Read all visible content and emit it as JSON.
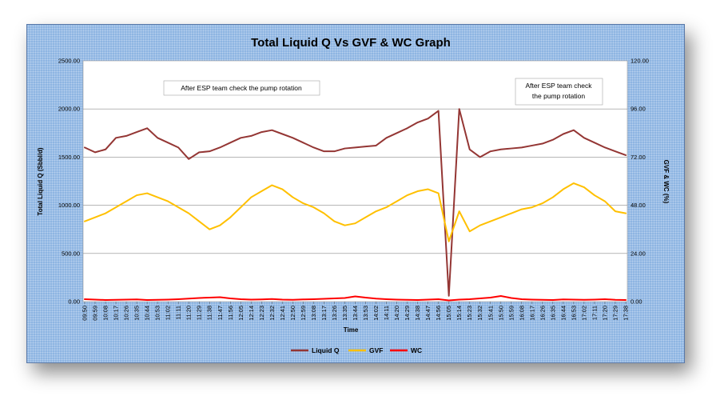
{
  "chart_data": {
    "type": "line",
    "title": "Total Liquid Q Vs GVF & WC Graph",
    "xlabel": "Time",
    "ylabel_left": "Total Liquid Q (Sbbl/d)",
    "ylabel_right": "GVF & WC (%)",
    "ylim_left": [
      0,
      2500
    ],
    "ylim_right": [
      0,
      120
    ],
    "yticks_left": [
      "0.00",
      "500.00",
      "1000.00",
      "1500.00",
      "2000.00",
      "2500.00"
    ],
    "yticks_right": [
      "0.00",
      "24.00",
      "48.00",
      "72.00",
      "96.00",
      "120.00"
    ],
    "xticks": [
      "09:50",
      "09:59",
      "10:08",
      "10:17",
      "10:26",
      "10:35",
      "10:44",
      "10:53",
      "11:02",
      "11:11",
      "11:20",
      "11:29",
      "11:38",
      "11:47",
      "11:56",
      "12:05",
      "12:14",
      "12:23",
      "12:32",
      "12:41",
      "12:50",
      "12:59",
      "13:08",
      "13:17",
      "13:26",
      "13:35",
      "13:44",
      "13:53",
      "14:02",
      "14:11",
      "14:20",
      "14:29",
      "14:38",
      "14:47",
      "14:56",
      "15:05",
      "15:14",
      "15:23",
      "15:32",
      "15:41",
      "15:50",
      "15:59",
      "16:08",
      "16:17",
      "16:26",
      "16:35",
      "16:44",
      "16:53",
      "17:02",
      "17:11",
      "17:20",
      "17:29",
      "17:38"
    ],
    "grid": "horizontal",
    "legend_position": "bottom",
    "annotations": [
      {
        "text": "After ESP team check the pump rotation"
      },
      {
        "text_lines": [
          "After ESP team check",
          "the pump rotation"
        ]
      }
    ],
    "series": [
      {
        "name": "Liquid Q",
        "axis": "left",
        "color": "#943634",
        "x": [
          "09:50",
          "09:59",
          "10:08",
          "10:17",
          "10:26",
          "10:35",
          "10:44",
          "10:53",
          "11:02",
          "11:11",
          "11:20",
          "11:29",
          "11:38",
          "11:47",
          "11:56",
          "12:05",
          "12:14",
          "12:23",
          "12:32",
          "12:41",
          "12:50",
          "12:59",
          "13:08",
          "13:17",
          "13:26",
          "13:35",
          "13:44",
          "13:53",
          "14:02",
          "14:11",
          "14:20",
          "14:29",
          "14:38",
          "14:47",
          "14:56",
          "15:05",
          "15:14",
          "15:23",
          "15:32",
          "15:41",
          "15:50",
          "15:59",
          "16:08",
          "16:17",
          "16:26",
          "16:35",
          "16:44",
          "16:53",
          "17:02",
          "17:11",
          "17:20",
          "17:29",
          "17:38"
        ],
        "values": [
          1600,
          1550,
          1580,
          1700,
          1720,
          1760,
          1800,
          1700,
          1650,
          1600,
          1480,
          1550,
          1560,
          1600,
          1650,
          1700,
          1720,
          1760,
          1780,
          1740,
          1700,
          1650,
          1600,
          1560,
          1560,
          1590,
          1600,
          1610,
          1620,
          1700,
          1750,
          1800,
          1860,
          1900,
          1980,
          60,
          2000,
          1580,
          1500,
          1560,
          1580,
          1590,
          1600,
          1620,
          1640,
          1680,
          1740,
          1780,
          1700,
          1650,
          1600,
          1560,
          1520
        ]
      },
      {
        "name": "GVF",
        "axis": "right",
        "color": "#ffc000",
        "x": [
          "09:50",
          "09:59",
          "10:08",
          "10:17",
          "10:26",
          "10:35",
          "10:44",
          "10:53",
          "11:02",
          "11:11",
          "11:20",
          "11:29",
          "11:38",
          "11:47",
          "11:56",
          "12:05",
          "12:14",
          "12:23",
          "12:32",
          "12:41",
          "12:50",
          "12:59",
          "13:08",
          "13:17",
          "13:26",
          "13:35",
          "13:44",
          "13:53",
          "14:02",
          "14:11",
          "14:20",
          "14:29",
          "14:38",
          "14:47",
          "14:56",
          "15:05",
          "15:14",
          "15:23",
          "15:32",
          "15:41",
          "15:50",
          "15:59",
          "16:08",
          "16:17",
          "16:26",
          "16:35",
          "16:44",
          "16:53",
          "17:02",
          "17:11",
          "17:20",
          "17:29",
          "17:38"
        ],
        "values": [
          40,
          42,
          44,
          47,
          50,
          53,
          54,
          52,
          50,
          47,
          44,
          40,
          36,
          38,
          42,
          47,
          52,
          55,
          58,
          56,
          52,
          49,
          47,
          44,
          40,
          38,
          39,
          42,
          45,
          47,
          50,
          53,
          55,
          56,
          54,
          30,
          45,
          35,
          38,
          40,
          42,
          44,
          46,
          47,
          49,
          52,
          56,
          59,
          57,
          53,
          50,
          45,
          44
        ]
      },
      {
        "name": "WC",
        "axis": "right",
        "color": "#ff0000",
        "x": [
          "09:50",
          "09:59",
          "10:08",
          "10:17",
          "10:26",
          "10:35",
          "10:44",
          "10:53",
          "11:02",
          "11:11",
          "11:20",
          "11:29",
          "11:38",
          "11:47",
          "11:56",
          "12:05",
          "12:14",
          "12:23",
          "12:32",
          "12:41",
          "12:50",
          "12:59",
          "13:08",
          "13:17",
          "13:26",
          "13:35",
          "13:44",
          "13:53",
          "14:02",
          "14:11",
          "14:20",
          "14:29",
          "14:38",
          "14:47",
          "14:56",
          "15:05",
          "15:14",
          "15:23",
          "15:32",
          "15:41",
          "15:50",
          "15:59",
          "16:08",
          "16:17",
          "16:26",
          "16:35",
          "16:44",
          "16:53",
          "17:02",
          "17:11",
          "17:20",
          "17:29",
          "17:38"
        ],
        "values": [
          1.2,
          1.0,
          0.8,
          0.9,
          1.0,
          1.1,
          0.8,
          0.9,
          1.0,
          1.2,
          1.5,
          1.8,
          2.0,
          2.2,
          1.6,
          1.2,
          1.0,
          1.1,
          1.3,
          1.0,
          0.9,
          1.1,
          1.2,
          1.4,
          1.6,
          1.8,
          2.6,
          2.0,
          1.5,
          1.2,
          1.0,
          0.9,
          0.8,
          1.0,
          1.2,
          0.6,
          1.0,
          1.2,
          1.6,
          2.0,
          2.8,
          1.8,
          1.2,
          1.0,
          0.9,
          0.8,
          1.1,
          1.0,
          0.9,
          1.0,
          1.2,
          0.9,
          0.8
        ]
      }
    ]
  }
}
